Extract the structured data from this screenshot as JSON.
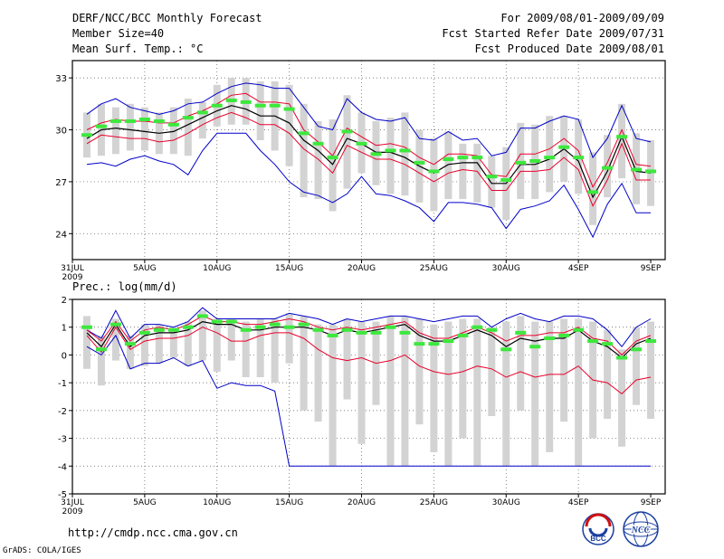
{
  "header": {
    "title": "DERF/NCC/BCC Monthly Forecast",
    "member_size": "Member Size=40",
    "variable": "Mean Surf. Temp.: °C",
    "period": "For 2009/08/01-2009/09/09",
    "started": "Fcst Started Refer Date 2009/07/31",
    "produced": "Fcst Produced Date 2009/08/01"
  },
  "footer": {
    "url": "http://cmdp.ncc.cma.gov.cn",
    "credit": "GrADS: COLA/IGES",
    "logo_bcc": "BCC",
    "logo_ncc": "NCC"
  },
  "colors": {
    "median": "#000000",
    "quartile": "#e8002a",
    "extreme": "#0000c8",
    "range_bar": "#d3d3d3",
    "ensemble_mean": "#3de83d",
    "grid": "#555555"
  },
  "chart_data": [
    {
      "type": "line",
      "title": "Mean Surf. Temp.: °C",
      "xlabel": "",
      "ylabel": "",
      "ylim": [
        22.5,
        34
      ],
      "yticks": [
        "24",
        "27",
        "30",
        "33"
      ],
      "x_ticks": [
        "31JUL\n2009",
        "5AUG",
        "10AUG",
        "15AUG",
        "20AUG",
        "25AUG",
        "30AUG",
        "4SEP",
        "9SEP"
      ],
      "x": [
        1,
        2,
        3,
        4,
        5,
        6,
        7,
        8,
        9,
        10,
        11,
        12,
        13,
        14,
        15,
        16,
        17,
        18,
        19,
        20,
        21,
        22,
        23,
        24,
        25,
        26,
        27,
        28,
        29,
        30,
        31,
        32,
        33,
        34,
        35,
        36,
        37,
        38,
        39,
        40
      ],
      "series": [
        {
          "name": "max",
          "values": [
            30.9,
            31.5,
            31.8,
            31.3,
            31.1,
            30.9,
            31.1,
            31.5,
            31.6,
            32.1,
            32.5,
            32.7,
            32.6,
            32.4,
            32.4,
            31.3,
            30.2,
            30.0,
            31.8,
            31.0,
            30.6,
            30.5,
            30.7,
            29.5,
            29.4,
            29.9,
            29.4,
            29.5,
            28.5,
            28.7,
            30.1,
            30.1,
            30.5,
            30.8,
            30.6,
            28.4,
            29.5,
            31.4,
            29.5,
            29.3
          ]
        },
        {
          "name": "upper_quartile",
          "values": [
            30.0,
            30.4,
            30.6,
            30.5,
            30.5,
            30.4,
            30.4,
            30.8,
            31.1,
            31.5,
            32.0,
            32.1,
            31.6,
            31.6,
            31.5,
            30.0,
            29.3,
            28.5,
            30.1,
            29.6,
            29.1,
            29.2,
            29.0,
            28.4,
            28.0,
            28.6,
            28.6,
            28.5,
            27.4,
            27.3,
            28.6,
            28.6,
            28.9,
            29.5,
            28.8,
            26.7,
            28.1,
            30.0,
            28.0,
            27.9
          ]
        },
        {
          "name": "median",
          "values": [
            29.5,
            30.0,
            30.1,
            30.0,
            29.9,
            29.8,
            29.9,
            30.3,
            30.7,
            31.1,
            31.4,
            31.2,
            30.8,
            30.8,
            30.4,
            29.4,
            28.8,
            28.0,
            29.5,
            29.2,
            28.7,
            28.7,
            28.4,
            27.9,
            27.5,
            28.0,
            28.1,
            28.1,
            26.9,
            26.9,
            28.0,
            28.0,
            28.3,
            28.9,
            28.2,
            26.1,
            27.6,
            29.6,
            27.6,
            27.5
          ]
        },
        {
          "name": "lower_quartile",
          "values": [
            29.2,
            29.7,
            29.6,
            29.5,
            29.5,
            29.3,
            29.4,
            29.8,
            30.3,
            30.7,
            31.0,
            30.7,
            30.3,
            30.3,
            29.8,
            28.9,
            28.3,
            27.5,
            29.1,
            28.7,
            28.3,
            28.3,
            28.0,
            27.5,
            27.0,
            27.5,
            27.7,
            27.6,
            26.5,
            26.5,
            27.6,
            27.6,
            27.7,
            28.4,
            27.7,
            25.6,
            27.1,
            29.2,
            27.1,
            27.1
          ]
        },
        {
          "name": "min",
          "values": [
            28.0,
            28.1,
            27.9,
            28.3,
            28.5,
            28.2,
            28.0,
            27.4,
            28.8,
            29.8,
            29.8,
            29.8,
            28.8,
            28.0,
            27.0,
            26.4,
            26.2,
            25.8,
            26.3,
            27.3,
            26.3,
            26.2,
            25.9,
            25.5,
            24.7,
            25.8,
            25.8,
            25.7,
            25.5,
            24.3,
            25.4,
            25.6,
            25.9,
            26.8,
            25.4,
            23.8,
            25.7,
            26.9,
            25.2,
            25.2
          ]
        },
        {
          "name": "ensemble_mean",
          "values": [
            29.7,
            30.2,
            30.5,
            30.5,
            30.6,
            30.5,
            30.3,
            30.7,
            31.0,
            31.4,
            31.7,
            31.6,
            31.4,
            31.4,
            31.2,
            29.8,
            29.2,
            28.4,
            29.9,
            29.2,
            28.6,
            28.8,
            28.8,
            28.1,
            27.6,
            28.3,
            28.4,
            28.4,
            27.3,
            27.1,
            28.1,
            28.2,
            28.4,
            29.0,
            28.4,
            26.4,
            27.8,
            29.6,
            27.7,
            27.6
          ]
        },
        {
          "name": "box_top",
          "values": [
            31.0,
            31.5,
            31.3,
            31.5,
            31.3,
            31.0,
            31.3,
            31.8,
            31.6,
            32.6,
            33.0,
            33.0,
            32.8,
            32.8,
            32.6,
            31.5,
            30.5,
            30.6,
            32.0,
            31.0,
            30.5,
            30.7,
            31.0,
            30.0,
            29.5,
            29.9,
            29.2,
            29.2,
            28.5,
            29.0,
            30.4,
            30.3,
            30.8,
            30.8,
            30.6,
            28.7,
            29.7,
            31.5,
            29.8,
            29.4
          ]
        },
        {
          "name": "box_bottom",
          "values": [
            28.4,
            28.5,
            28.6,
            28.8,
            28.8,
            28.6,
            28.6,
            28.5,
            29.5,
            30.2,
            30.3,
            30.3,
            29.4,
            28.8,
            27.9,
            26.1,
            26.0,
            25.3,
            26.6,
            27.5,
            26.8,
            26.3,
            26.2,
            25.8,
            25.3,
            26.0,
            26.0,
            25.8,
            25.5,
            24.8,
            26.0,
            26.0,
            26.4,
            27.0,
            26.3,
            24.5,
            26.1,
            27.2,
            25.7,
            25.6
          ]
        }
      ]
    },
    {
      "type": "line",
      "title": "Prec.: log(mm/d)",
      "xlabel": "",
      "ylabel": "",
      "ylim": [
        -5,
        2
      ],
      "yticks": [
        "-5",
        "-4",
        "-3",
        "-2",
        "-1",
        "0",
        "1",
        "2"
      ],
      "x_ticks": [
        "31JUL\n2009",
        "5AUG",
        "10AUG",
        "15AUG",
        "20AUG",
        "25AUG",
        "30AUG",
        "4SEP",
        "9SEP"
      ],
      "x": [
        1,
        2,
        3,
        4,
        5,
        6,
        7,
        8,
        9,
        10,
        11,
        12,
        13,
        14,
        15,
        16,
        17,
        18,
        19,
        20,
        21,
        22,
        23,
        24,
        25,
        26,
        27,
        28,
        29,
        30,
        31,
        32,
        33,
        34,
        35,
        36,
        37,
        38,
        39,
        40
      ],
      "series": [
        {
          "name": "max",
          "values": [
            0.9,
            0.6,
            1.6,
            0.6,
            1.1,
            1.1,
            1.0,
            1.2,
            1.7,
            1.3,
            1.3,
            1.3,
            1.3,
            1.3,
            1.5,
            1.4,
            1.3,
            1.1,
            1.3,
            1.2,
            1.3,
            1.4,
            1.4,
            1.3,
            1.2,
            1.3,
            1.4,
            1.4,
            1.0,
            1.3,
            1.5,
            1.3,
            1.2,
            1.4,
            1.4,
            1.3,
            0.9,
            0.3,
            1.0,
            1.3
          ]
        },
        {
          "name": "upper_quartile",
          "values": [
            0.9,
            0.5,
            1.2,
            0.5,
            0.9,
            1.0,
            0.9,
            1.1,
            1.4,
            1.2,
            1.2,
            1.1,
            1.1,
            1.2,
            1.3,
            1.2,
            1.0,
            0.9,
            1.0,
            0.9,
            1.0,
            1.1,
            1.2,
            0.8,
            0.6,
            0.6,
            0.8,
            1.0,
            0.8,
            0.5,
            0.7,
            0.7,
            0.8,
            0.8,
            1.0,
            0.6,
            0.5,
            -0.0,
            0.5,
            0.7
          ]
        },
        {
          "name": "median",
          "values": [
            0.8,
            0.3,
            1.1,
            0.3,
            0.7,
            0.8,
            0.8,
            0.9,
            1.2,
            1.1,
            1.1,
            0.9,
            0.9,
            1.0,
            1.0,
            1.0,
            0.9,
            0.7,
            0.9,
            0.8,
            0.9,
            1.0,
            1.1,
            0.7,
            0.5,
            0.5,
            0.7,
            0.9,
            0.7,
            0.3,
            0.6,
            0.5,
            0.6,
            0.6,
            0.9,
            0.5,
            0.3,
            -0.1,
            0.4,
            0.6
          ]
        },
        {
          "name": "lower_quartile",
          "values": [
            0.7,
            0.1,
            1.0,
            0.2,
            0.5,
            0.6,
            0.6,
            0.7,
            1.0,
            0.8,
            0.5,
            0.5,
            0.7,
            0.8,
            0.8,
            0.6,
            0.2,
            -0.1,
            -0.2,
            -0.1,
            -0.3,
            -0.2,
            0.0,
            -0.4,
            -0.6,
            -0.7,
            -0.6,
            -0.4,
            -0.5,
            -0.8,
            -0.6,
            -0.8,
            -0.7,
            -0.7,
            -0.4,
            -0.9,
            -1.0,
            -1.4,
            -0.9,
            -0.8
          ]
        },
        {
          "name": "min",
          "values": [
            0.3,
            0.0,
            0.7,
            -0.5,
            -0.3,
            -0.3,
            -0.1,
            -0.4,
            -0.2,
            -1.2,
            -1.0,
            -1.1,
            -1.1,
            -1.3,
            -4.0,
            -4.0,
            -4.0,
            -4.0,
            -4.0,
            -4.0,
            -4.0,
            -4.0,
            -4.0,
            -4.0,
            -4.0,
            -4.0,
            -4.0,
            -4.0,
            -4.0,
            -4.0,
            -4.0,
            -4.0,
            -4.0,
            -4.0,
            -4.0,
            -4.0,
            -4.0,
            -4.0,
            -4.0,
            -4.0
          ]
        },
        {
          "name": "ensemble_mean",
          "values": [
            1.0,
            0.2,
            1.1,
            0.4,
            0.8,
            0.9,
            0.9,
            1.0,
            1.4,
            1.2,
            1.2,
            0.9,
            1.0,
            1.1,
            1.0,
            1.1,
            0.9,
            0.7,
            0.9,
            0.8,
            0.8,
            1.0,
            0.8,
            0.4,
            0.4,
            0.5,
            0.7,
            1.0,
            0.9,
            0.2,
            0.8,
            0.3,
            0.6,
            0.7,
            0.9,
            0.5,
            0.4,
            -0.1,
            0.2,
            0.5
          ]
        },
        {
          "name": "box_top",
          "values": [
            1.4,
            0.7,
            1.3,
            0.7,
            1.1,
            1.1,
            1.0,
            1.2,
            1.6,
            1.3,
            1.3,
            1.2,
            1.3,
            1.3,
            1.5,
            1.4,
            1.1,
            1.1,
            1.3,
            1.2,
            1.2,
            1.4,
            1.4,
            1.3,
            1.1,
            1.2,
            1.3,
            1.3,
            1.0,
            1.2,
            1.4,
            1.2,
            1.2,
            1.3,
            1.3,
            1.2,
            0.9,
            0.2,
            1.0,
            1.2
          ]
        },
        {
          "name": "box_bottom",
          "values": [
            -0.5,
            -1.1,
            -0.2,
            -0.5,
            -0.4,
            -0.3,
            -0.1,
            -0.4,
            -0.2,
            -0.6,
            -0.2,
            -0.8,
            -0.8,
            -1.0,
            -0.3,
            -2.0,
            -2.4,
            -4.0,
            -1.6,
            -3.2,
            -1.8,
            -4.0,
            -4.0,
            -2.5,
            -3.5,
            -4.0,
            -3.0,
            -4.0,
            -2.2,
            -4.0,
            -2.0,
            -4.0,
            -3.5,
            -2.4,
            -4.0,
            -3.0,
            -2.3,
            -3.3,
            -1.8,
            -2.3
          ]
        }
      ]
    }
  ]
}
